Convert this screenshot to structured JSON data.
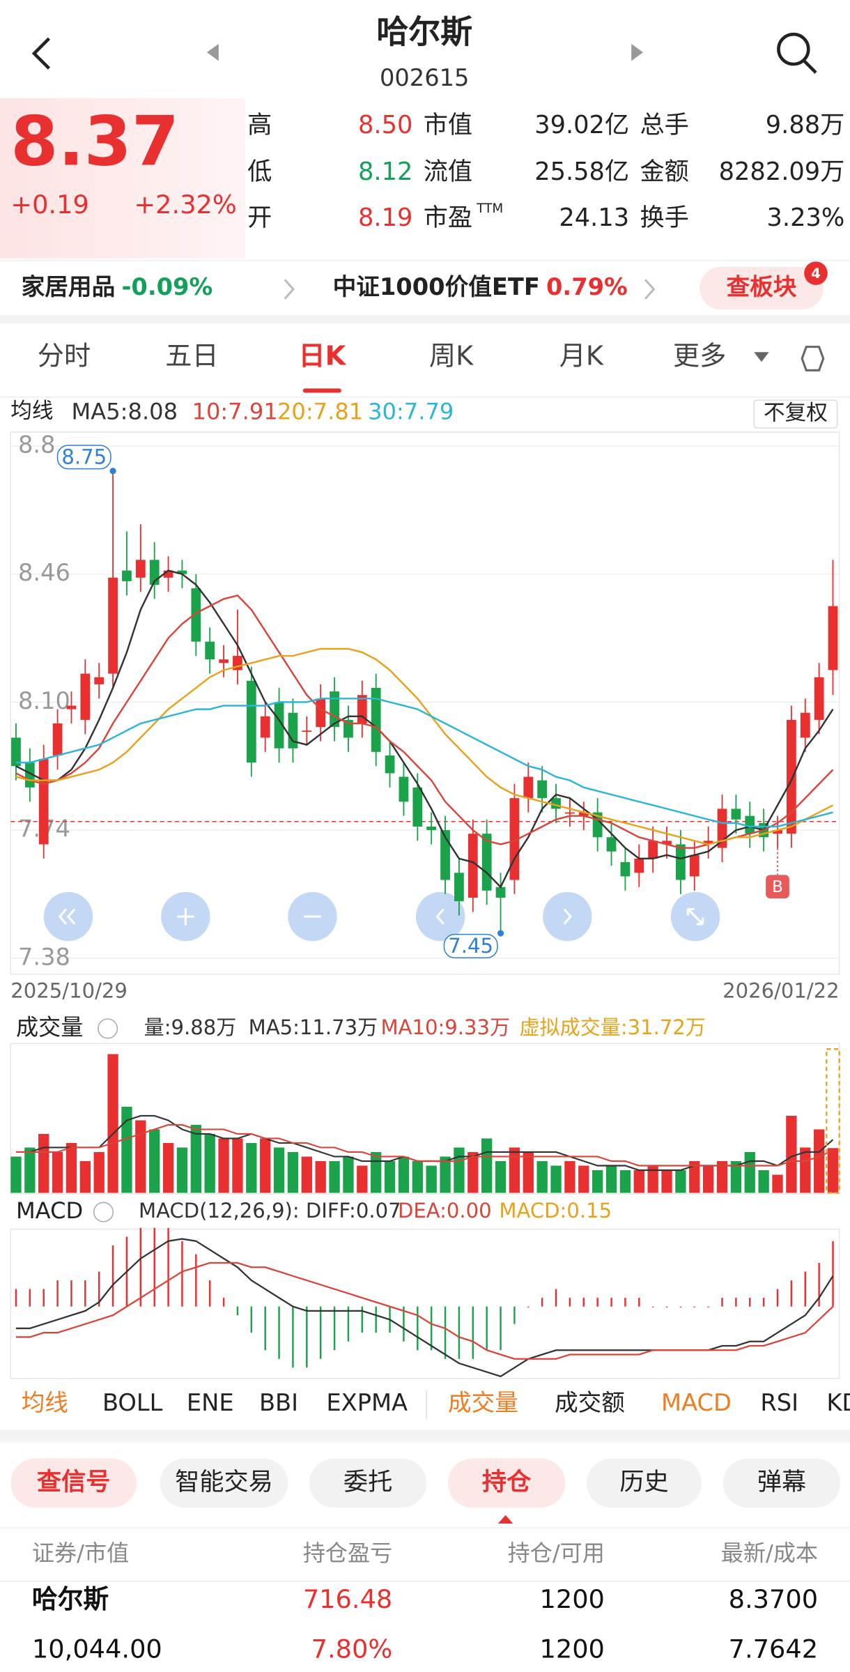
{
  "header": {
    "title": "哈尔斯",
    "code": "002615"
  },
  "quote": {
    "price": "8.37",
    "change": "+0.19",
    "change_pct": "+2.32%",
    "stats": [
      {
        "label": "高",
        "value": "8.50",
        "color": "#e93030"
      },
      {
        "label": "市值",
        "value": "39.02亿"
      },
      {
        "label": "总手",
        "value": "9.88万"
      },
      {
        "label": "低",
        "value": "8.12",
        "color": "#14a05a"
      },
      {
        "label": "流值",
        "value": "25.58亿"
      },
      {
        "label": "金额",
        "value": "8282.09万"
      },
      {
        "label": "开",
        "value": "8.19",
        "color": "#e93030"
      },
      {
        "label": "市盈",
        "sup": "TTM",
        "value": "24.13"
      },
      {
        "label": "换手",
        "value": "3.23%"
      }
    ]
  },
  "sectors": [
    {
      "name": "家居用品",
      "change": "-0.09%",
      "color": "#14a05a"
    },
    {
      "name": "中证1000价值ETF",
      "change": "0.79%",
      "color": "#e93030"
    }
  ],
  "sector_button": "查板块",
  "sector_badge": "4",
  "period_tabs": [
    "分时",
    "五日",
    "日K",
    "周K",
    "月K",
    "更多"
  ],
  "active_tab": 2,
  "ma_legend": {
    "title": "均线",
    "items": [
      {
        "text": "MA5:8.08",
        "color": "#333333"
      },
      {
        "text": "10:7.91",
        "color": "#d9453a"
      },
      {
        "text": "20:7.81",
        "color": "#e6a21a"
      },
      {
        "text": "30:7.79",
        "color": "#2bb5d8"
      }
    ]
  },
  "adjust_button": "不复权",
  "chart_data": [
    {
      "type": "candlestick",
      "up_color": "#e93030",
      "down_color": "#1aa34a",
      "categories": [
        "2025/10/29",
        null,
        null,
        null,
        null,
        null,
        null,
        null,
        null,
        null,
        null,
        null,
        null,
        null,
        null,
        null,
        null,
        null,
        null,
        null,
        null,
        null,
        null,
        null,
        null,
        null,
        null,
        null,
        null,
        null,
        null,
        null,
        null,
        null,
        null,
        null,
        null,
        null,
        null,
        null,
        null,
        null,
        null,
        null,
        null,
        null,
        null,
        null,
        null,
        null,
        null,
        null,
        null,
        null,
        null,
        null,
        null,
        null,
        null,
        "2026/01/22"
      ],
      "open": [
        8.0,
        7.93,
        7.7,
        7.95,
        8.08,
        8.05,
        8.15,
        8.18,
        8.47,
        8.45,
        8.5,
        8.45,
        8.47,
        8.42,
        8.27,
        8.21,
        8.19,
        8.16,
        8.0,
        8.1,
        8.07,
        8.02,
        8.03,
        8.13,
        8.05,
        8.04,
        8.14,
        7.95,
        7.89,
        7.86,
        7.75,
        7.74,
        7.62,
        7.55,
        7.73,
        7.58,
        7.6,
        7.83,
        7.88,
        7.83,
        7.79,
        7.78,
        7.79,
        7.72,
        7.65,
        7.62,
        7.66,
        7.7,
        7.7,
        7.61,
        7.7,
        7.69,
        7.8,
        7.78,
        7.76,
        7.73,
        7.73,
        8.0,
        8.05,
        8.19
      ],
      "high": [
        8.04,
        7.97,
        7.98,
        8.08,
        8.13,
        8.22,
        8.21,
        8.75,
        8.58,
        8.6,
        8.55,
        8.51,
        8.5,
        8.46,
        8.31,
        8.26,
        8.36,
        8.2,
        8.1,
        8.14,
        8.11,
        8.06,
        8.15,
        8.17,
        8.09,
        8.16,
        8.18,
        7.99,
        7.93,
        7.9,
        7.79,
        7.78,
        7.66,
        7.77,
        7.77,
        7.62,
        7.87,
        7.93,
        7.92,
        7.87,
        7.83,
        7.82,
        7.83,
        7.76,
        7.69,
        7.7,
        7.75,
        7.75,
        7.74,
        7.71,
        7.75,
        7.84,
        7.84,
        7.82,
        7.8,
        7.78,
        8.09,
        8.11,
        8.21,
        8.5
      ],
      "low": [
        7.88,
        7.82,
        7.66,
        7.91,
        8.04,
        8.01,
        8.11,
        8.14,
        8.4,
        8.41,
        8.39,
        8.41,
        8.42,
        8.23,
        8.18,
        8.17,
        8.15,
        7.89,
        7.96,
        7.93,
        7.93,
        7.98,
        7.99,
        7.99,
        7.96,
        8.0,
        7.92,
        7.86,
        7.78,
        7.71,
        7.7,
        7.56,
        7.5,
        7.51,
        7.53,
        7.45,
        7.56,
        7.79,
        7.79,
        7.76,
        7.75,
        7.74,
        7.68,
        7.64,
        7.57,
        7.58,
        7.62,
        7.66,
        7.56,
        7.57,
        7.66,
        7.65,
        7.73,
        7.69,
        7.68,
        7.69,
        7.69,
        7.96,
        8.01,
        8.12
      ],
      "close": [
        7.92,
        7.86,
        7.94,
        8.04,
        8.09,
        8.18,
        8.17,
        8.45,
        8.44,
        8.5,
        8.43,
        8.47,
        8.46,
        8.27,
        8.22,
        8.22,
        8.23,
        7.93,
        8.06,
        7.97,
        7.97,
        8.02,
        8.11,
        8.03,
        8.0,
        8.12,
        7.96,
        7.9,
        7.82,
        7.75,
        7.74,
        7.6,
        7.54,
        7.73,
        7.57,
        7.55,
        7.83,
        7.89,
        7.83,
        7.8,
        7.79,
        7.79,
        7.72,
        7.68,
        7.61,
        7.66,
        7.71,
        7.71,
        7.6,
        7.67,
        7.71,
        7.8,
        7.77,
        7.73,
        7.72,
        7.74,
        8.05,
        8.07,
        8.17,
        8.37
      ],
      "lines": [
        {
          "color": "#333333",
          "values": [
            7.92,
            7.9,
            7.88,
            7.88,
            7.91,
            7.97,
            8.05,
            8.14,
            8.24,
            8.36,
            8.44,
            8.47,
            8.46,
            8.43,
            8.38,
            8.32,
            8.26,
            8.18,
            8.1,
            8.05,
            7.99,
            7.98,
            8.01,
            8.04,
            8.06,
            8.06,
            8.03,
            7.99,
            7.93,
            7.87,
            7.8,
            7.72,
            7.66,
            7.65,
            7.62,
            7.58,
            7.66,
            7.72,
            7.8,
            7.84,
            7.83,
            7.8,
            7.77,
            7.73,
            7.69,
            7.66,
            7.66,
            7.67,
            7.66,
            7.67,
            7.68,
            7.71,
            7.74,
            7.75,
            7.74,
            7.81,
            7.88,
            7.97,
            8.02,
            8.08
          ]
        },
        {
          "color": "#d9453a",
          "values": [
            7.9,
            7.88,
            7.87,
            7.88,
            7.9,
            7.93,
            7.97,
            8.04,
            8.1,
            8.16,
            8.22,
            8.28,
            8.32,
            8.35,
            8.37,
            8.39,
            8.4,
            8.36,
            8.3,
            8.24,
            8.18,
            8.12,
            8.08,
            8.06,
            8.04,
            8.04,
            8.03,
            7.99,
            7.96,
            7.92,
            7.88,
            7.82,
            7.78,
            7.74,
            7.71,
            7.7,
            7.71,
            7.73,
            7.75,
            7.77,
            7.78,
            7.78,
            7.77,
            7.76,
            7.74,
            7.72,
            7.71,
            7.7,
            7.69,
            7.69,
            7.7,
            7.71,
            7.72,
            7.73,
            7.74,
            7.76,
            7.79,
            7.83,
            7.87,
            7.91
          ]
        },
        {
          "color": "#e6a21a",
          "values": [
            7.89,
            7.88,
            7.88,
            7.88,
            7.89,
            7.9,
            7.91,
            7.93,
            7.96,
            8.0,
            8.04,
            8.08,
            8.11,
            8.14,
            8.17,
            8.19,
            8.2,
            8.21,
            8.22,
            8.23,
            8.23,
            8.24,
            8.25,
            8.25,
            8.25,
            8.24,
            8.22,
            8.19,
            8.15,
            8.11,
            8.06,
            8.01,
            7.97,
            7.93,
            7.89,
            7.86,
            7.84,
            7.83,
            7.82,
            7.81,
            7.8,
            7.79,
            7.78,
            7.77,
            7.76,
            7.75,
            7.74,
            7.73,
            7.72,
            7.71,
            7.7,
            7.71,
            7.72,
            7.72,
            7.73,
            7.74,
            7.75,
            7.77,
            7.79,
            7.81
          ]
        },
        {
          "color": "#2bb5d8",
          "values": [
            7.93,
            7.93,
            7.94,
            7.95,
            7.96,
            7.97,
            7.98,
            8.0,
            8.02,
            8.04,
            8.05,
            8.06,
            8.07,
            8.08,
            8.08,
            8.09,
            8.09,
            8.09,
            8.09,
            8.1,
            8.1,
            8.1,
            8.11,
            8.11,
            8.11,
            8.11,
            8.11,
            8.1,
            8.09,
            8.08,
            8.06,
            8.04,
            8.02,
            8.0,
            7.98,
            7.96,
            7.94,
            7.92,
            7.91,
            7.89,
            7.88,
            7.86,
            7.85,
            7.84,
            7.83,
            7.82,
            7.81,
            7.8,
            7.79,
            7.78,
            7.77,
            7.76,
            7.76,
            7.75,
            7.75,
            7.75,
            7.76,
            7.77,
            7.78,
            7.79
          ]
        }
      ],
      "ylim": [
        7.38,
        8.82
      ],
      "yticks": [
        7.38,
        7.74,
        {
          "value": 8.1,
          "label": "8.10"
        },
        8.46,
        {
          "value": 8.82,
          "label": "8.8"
        }
      ],
      "grid": true,
      "high_marker": 8.75,
      "low_marker": 7.45,
      "signal_marker": "B",
      "cost_line": 7.7642
    },
    {
      "type": "bar",
      "title": "成交量",
      "legend": [
        {
          "text": "量:9.88万",
          "color": "#333333"
        },
        {
          "text": "MA5:11.73万",
          "color": "#333333"
        },
        {
          "text": "MA10:9.33万",
          "color": "#d9453a"
        },
        {
          "text": "虚拟成交量:31.72万",
          "color": "#e6a21a"
        }
      ],
      "values": [
        8,
        10,
        13,
        9,
        11,
        7,
        9,
        30.6,
        19,
        16,
        14,
        11,
        10,
        15,
        13,
        12,
        12,
        11,
        12,
        10,
        9,
        8,
        7,
        7,
        8,
        6,
        9,
        7,
        8,
        7,
        6,
        8,
        10,
        9,
        12,
        7,
        10,
        9,
        7,
        6,
        7,
        6,
        5,
        6,
        5,
        5,
        6,
        5,
        5,
        7,
        6,
        7,
        7,
        9,
        5,
        4,
        17,
        10,
        14,
        9.88
      ],
      "lines": [
        {
          "color": "#333333",
          "values": [
            9,
            9,
            10,
            10,
            10,
            10,
            10,
            13,
            16,
            17,
            17,
            16,
            14,
            13,
            13,
            12,
            12,
            13,
            12,
            11,
            11,
            10,
            9,
            8,
            8,
            7,
            7,
            7,
            8,
            7,
            7,
            7,
            8,
            8,
            9,
            9,
            9,
            9,
            9,
            9,
            8,
            7,
            6,
            6,
            6,
            5,
            5,
            5,
            5,
            6,
            6,
            6,
            6,
            7,
            7,
            6,
            8,
            9,
            9,
            11.73
          ]
        },
        {
          "color": "#d9453a",
          "values": [
            9,
            9,
            9,
            9,
            10,
            10,
            10,
            11,
            12,
            13,
            14,
            15,
            15,
            14,
            14,
            14,
            13,
            13,
            12,
            12,
            11,
            11,
            10,
            10,
            9,
            9,
            8,
            8,
            8,
            7,
            7,
            7,
            7,
            8,
            8,
            8,
            8,
            8,
            8,
            8,
            8,
            8,
            8,
            7,
            7,
            6,
            6,
            6,
            6,
            6,
            6,
            6,
            6,
            6,
            6,
            6,
            7,
            7,
            8,
            9.33
          ]
        }
      ],
      "virtual_volume": 31.72,
      "ylim": [
        0,
        32
      ]
    },
    {
      "type": "macd",
      "title": "MACD",
      "legend": [
        {
          "text": "MACD(12,26,9): DIFF:0.07",
          "color": "#333333"
        },
        {
          "text": "DEA:0.00",
          "color": "#d9453a"
        },
        {
          "text": "MACD:0.15",
          "color": "#e6a21a"
        }
      ],
      "diff": [
        -0.05,
        -0.05,
        -0.04,
        -0.03,
        -0.02,
        -0.01,
        0.01,
        0.05,
        0.08,
        0.11,
        0.13,
        0.15,
        0.155,
        0.15,
        0.13,
        0.11,
        0.09,
        0.06,
        0.04,
        0.02,
        0.0,
        -0.01,
        -0.01,
        -0.01,
        -0.01,
        -0.01,
        -0.02,
        -0.03,
        -0.05,
        -0.07,
        -0.09,
        -0.11,
        -0.13,
        -0.14,
        -0.15,
        -0.16,
        -0.14,
        -0.12,
        -0.11,
        -0.1,
        -0.1,
        -0.1,
        -0.1,
        -0.1,
        -0.1,
        -0.1,
        -0.1,
        -0.1,
        -0.1,
        -0.1,
        -0.1,
        -0.09,
        -0.09,
        -0.08,
        -0.08,
        -0.06,
        -0.04,
        -0.02,
        0.02,
        0.07
      ],
      "dea": [
        -0.07,
        -0.07,
        -0.06,
        -0.06,
        -0.05,
        -0.04,
        -0.03,
        -0.02,
        0.0,
        0.02,
        0.04,
        0.06,
        0.08,
        0.09,
        0.1,
        0.1,
        0.1,
        0.09,
        0.09,
        0.08,
        0.07,
        0.06,
        0.05,
        0.04,
        0.03,
        0.02,
        0.01,
        0.0,
        -0.01,
        -0.02,
        -0.04,
        -0.05,
        -0.07,
        -0.08,
        -0.1,
        -0.11,
        -0.12,
        -0.12,
        -0.12,
        -0.12,
        -0.11,
        -0.11,
        -0.11,
        -0.11,
        -0.11,
        -0.11,
        -0.1,
        -0.1,
        -0.1,
        -0.1,
        -0.1,
        -0.1,
        -0.1,
        -0.09,
        -0.09,
        -0.08,
        -0.07,
        -0.06,
        -0.03,
        0.0
      ],
      "hist": [
        0.04,
        0.04,
        0.04,
        0.06,
        0.06,
        0.06,
        0.08,
        0.14,
        0.16,
        0.18,
        0.18,
        0.18,
        0.15,
        0.12,
        0.06,
        0.02,
        -0.02,
        -0.06,
        -0.1,
        -0.12,
        -0.14,
        -0.14,
        -0.12,
        -0.1,
        -0.08,
        -0.06,
        -0.06,
        -0.06,
        -0.08,
        -0.1,
        -0.1,
        -0.12,
        -0.12,
        -0.12,
        -0.1,
        -0.1,
        -0.04,
        0.0,
        0.02,
        0.04,
        0.02,
        0.02,
        0.02,
        0.02,
        0.02,
        0.02,
        0.0,
        0.0,
        0.0,
        0.0,
        0.0,
        0.02,
        0.02,
        0.02,
        0.02,
        0.04,
        0.06,
        0.08,
        0.1,
        0.15
      ],
      "ylim": [
        -0.16,
        0.17
      ]
    }
  ],
  "indicator_tabs": [
    "均线",
    "BOLL",
    "ENE",
    "BBI",
    "EXPMA",
    "成交量",
    "成交额",
    "MACD",
    "RSI",
    "KD"
  ],
  "highlighted_tabs": [
    0,
    5,
    7
  ],
  "buttons": [
    "查信号",
    "智能交易",
    "委托",
    "持仓",
    "历史",
    "弹幕"
  ],
  "active_buttons": [
    0,
    3
  ],
  "positions": {
    "header": [
      "证券/市值",
      "持仓盈亏",
      "持仓/可用",
      "最新/成本"
    ],
    "rows": [
      [
        "哈尔斯",
        "716.48",
        "1200",
        "8.3700"
      ],
      [
        "10,044.00",
        "7.80%",
        "1200",
        "7.7642"
      ]
    ]
  }
}
